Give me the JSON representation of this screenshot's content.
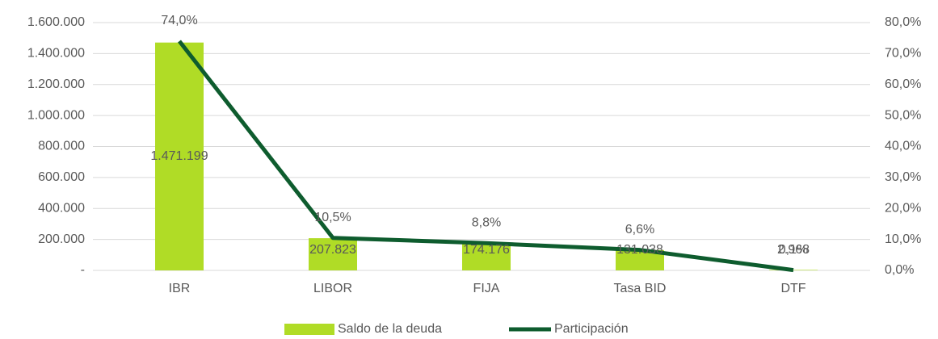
{
  "chart_data": {
    "type": "combo",
    "categories": [
      "IBR",
      "LIBOR",
      "FIJA",
      "Tasa BID",
      "DTF"
    ],
    "series": [
      {
        "name": "Saldo de la deuda",
        "type": "bar",
        "color": "#b0dc26",
        "values": [
          1471199,
          207823,
          174176,
          131038,
          2968
        ],
        "value_labels": [
          "1.471.199",
          "207.823",
          "174.176",
          "131.038",
          "2.968"
        ]
      },
      {
        "name": "Participación",
        "type": "line",
        "axis": "y2",
        "color": "#0e5c2e",
        "values": [
          74.0,
          10.5,
          8.8,
          6.6,
          0.1
        ],
        "value_labels": [
          "74,0%",
          "10,5%",
          "8,8%",
          "6,6%",
          "0,1%"
        ]
      }
    ],
    "ylim": [
      0,
      1600000
    ],
    "yticks": [
      {
        "value": 0,
        "label": "-"
      },
      {
        "value": 200000,
        "label": "200.000"
      },
      {
        "value": 400000,
        "label": "400.000"
      },
      {
        "value": 600000,
        "label": "600.000"
      },
      {
        "value": 800000,
        "label": "800.000"
      },
      {
        "value": 1000000,
        "label": "1.000.000"
      },
      {
        "value": 1200000,
        "label": "1.200.000"
      },
      {
        "value": 1400000,
        "label": "1.400.000"
      },
      {
        "value": 1600000,
        "label": "1.600.000"
      }
    ],
    "y2lim": [
      0,
      80
    ],
    "y2ticks": [
      {
        "value": 0,
        "label": "0,0%"
      },
      {
        "value": 10,
        "label": "10,0%"
      },
      {
        "value": 20,
        "label": "20,0%"
      },
      {
        "value": 30,
        "label": "30,0%"
      },
      {
        "value": 40,
        "label": "40,0%"
      },
      {
        "value": 50,
        "label": "50,0%"
      },
      {
        "value": 60,
        "label": "60,0%"
      },
      {
        "value": 70,
        "label": "70,0%"
      },
      {
        "value": 80,
        "label": "80,0%"
      }
    ],
    "grid": true,
    "legend": "bottom"
  }
}
